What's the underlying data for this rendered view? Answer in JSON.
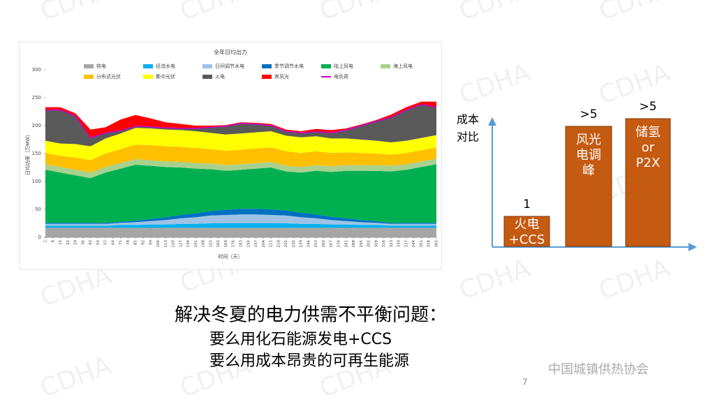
{
  "chart_data": {
    "type": "stacked-area",
    "title": "全年日均出力",
    "y_label": "日均功率（万MW）",
    "x_label": "时间（天）",
    "xlim": [
      1,
      365
    ],
    "ylim": [
      0,
      300
    ],
    "yticks": [
      0,
      50,
      100,
      150,
      200,
      250,
      300
    ],
    "xticks": [
      1,
      8,
      15,
      22,
      29,
      36,
      43,
      50,
      57,
      64,
      71,
      78,
      85,
      92,
      99,
      106,
      113,
      120,
      127,
      134,
      141,
      148,
      155,
      162,
      169,
      176,
      183,
      190,
      197,
      204,
      211,
      218,
      225,
      232,
      239,
      246,
      253,
      260,
      267,
      274,
      281,
      288,
      295,
      302,
      309,
      316,
      323,
      330,
      337,
      344,
      351,
      358,
      365
    ],
    "x": [
      1,
      15,
      29,
      43,
      57,
      71,
      85,
      99,
      113,
      127,
      141,
      155,
      169,
      183,
      197,
      211,
      225,
      239,
      253,
      267,
      281,
      295,
      309,
      323,
      337,
      351,
      365
    ],
    "series": [
      {
        "name": "核电",
        "color": "#a6a6a6",
        "values": [
          17,
          17,
          17,
          17,
          17,
          17,
          17,
          17,
          17,
          17,
          17,
          17,
          17,
          17,
          17,
          17,
          17,
          17,
          17,
          17,
          17,
          17,
          17,
          17,
          17,
          17,
          17
        ]
      },
      {
        "name": "径流水电",
        "color": "#00b0f0",
        "values": [
          4,
          4,
          4,
          4,
          4,
          5,
          5,
          6,
          6,
          7,
          7,
          8,
          8,
          8,
          8,
          8,
          8,
          7,
          7,
          6,
          6,
          5,
          5,
          4,
          4,
          4,
          4
        ]
      },
      {
        "name": "日间调节水电",
        "color": "#9dc3e6",
        "values": [
          3,
          3,
          3,
          3,
          3,
          4,
          5,
          6,
          8,
          10,
          12,
          14,
          15,
          16,
          16,
          15,
          14,
          12,
          10,
          8,
          6,
          5,
          4,
          3,
          3,
          3,
          3
        ]
      },
      {
        "name": "季节调节水电",
        "color": "#0070c0",
        "values": [
          2,
          2,
          2,
          2,
          2,
          2,
          3,
          4,
          5,
          6,
          7,
          8,
          9,
          10,
          10,
          10,
          9,
          8,
          7,
          6,
          5,
          4,
          3,
          2,
          2,
          2,
          2
        ]
      },
      {
        "name": "陆上风电",
        "color": "#00b050",
        "values": [
          95,
          90,
          85,
          80,
          90,
          95,
          100,
          95,
          90,
          85,
          80,
          75,
          70,
          70,
          72,
          75,
          70,
          72,
          78,
          80,
          85,
          88,
          90,
          92,
          95,
          100,
          105
        ]
      },
      {
        "name": "海上风电",
        "color": "#a9d18e",
        "values": [
          10,
          10,
          10,
          10,
          10,
          10,
          10,
          10,
          10,
          10,
          10,
          10,
          10,
          10,
          10,
          10,
          10,
          10,
          10,
          10,
          10,
          10,
          10,
          10,
          10,
          10,
          10
        ]
      },
      {
        "name": "分布式光伏",
        "color": "#ffc000",
        "values": [
          20,
          20,
          22,
          22,
          24,
          25,
          26,
          27,
          27,
          27,
          27,
          26,
          26,
          26,
          26,
          26,
          26,
          25,
          25,
          24,
          23,
          22,
          21,
          20,
          20,
          20,
          20
        ]
      },
      {
        "name": "集中光伏",
        "color": "#ffff00",
        "values": [
          22,
          22,
          24,
          25,
          27,
          28,
          30,
          30,
          30,
          30,
          30,
          29,
          29,
          29,
          29,
          29,
          28,
          28,
          27,
          26,
          25,
          24,
          23,
          22,
          22,
          22,
          22
        ]
      },
      {
        "name": "火电",
        "color": "#595959",
        "values": [
          55,
          60,
          50,
          15,
          10,
          5,
          3,
          3,
          3,
          3,
          5,
          10,
          15,
          18,
          15,
          10,
          8,
          8,
          8,
          10,
          15,
          25,
          35,
          45,
          55,
          60,
          50
        ]
      },
      {
        "name": "弃风光",
        "color": "#ff0000",
        "values": [
          5,
          5,
          5,
          15,
          10,
          20,
          20,
          15,
          10,
          8,
          5,
          3,
          2,
          2,
          2,
          3,
          3,
          3,
          5,
          5,
          3,
          2,
          2,
          5,
          5,
          5,
          10
        ]
      }
    ],
    "line_series": [
      {
        "name": "电负荷",
        "color": "#cc00cc",
        "values": [
          228,
          228,
          217,
          178,
          187,
          191,
          199,
          198,
          196,
          195,
          195,
          197,
          199,
          204,
          203,
          200,
          190,
          187,
          189,
          187,
          192,
          200,
          208,
          215,
          228,
          238,
          233
        ]
      }
    ]
  },
  "diagram": {
    "y_label": [
      "成本",
      "对比"
    ],
    "bars": [
      {
        "top_label": "1",
        "label": [
          "火电",
          "+CCS"
        ]
      },
      {
        "top_label": ">5",
        "label": [
          "风光",
          "电调",
          "峰"
        ]
      },
      {
        "top_label": ">5",
        "label": [
          "储氢",
          "or",
          "P2X"
        ]
      }
    ]
  },
  "text": {
    "heading": "解决冬夏的电力供需不平衡问题：",
    "lines": [
      "要么用化石能源发电+CCS",
      "要么用成本昂贵的可再生能源"
    ],
    "logo": "中国城镇供热协会",
    "page": "7",
    "watermark": "CDHA"
  }
}
